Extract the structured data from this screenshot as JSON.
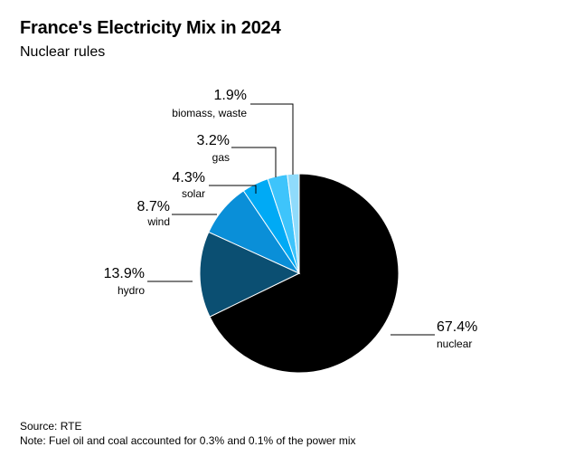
{
  "title": "France's Electricity Mix in 2024",
  "subtitle": "Nuclear rules",
  "source": "Source: RTE",
  "note": "Note: Fuel oil and coal accounted for 0.3% and 0.1% of the power mix",
  "chart_data": {
    "type": "pie",
    "title": "France's Electricity Mix in 2024",
    "subtitle": "Nuclear rules",
    "unit": "%",
    "slices": [
      {
        "label": "nuclear",
        "value": 67.4,
        "display": "67.4%",
        "color": "#000000"
      },
      {
        "label": "hydro",
        "value": 13.9,
        "display": "13.9%",
        "color": "#0b4f72"
      },
      {
        "label": "wind",
        "value": 8.7,
        "display": "8.7%",
        "color": "#0a8fd8"
      },
      {
        "label": "solar",
        "value": 4.3,
        "display": "4.3%",
        "color": "#00aaf5"
      },
      {
        "label": "gas",
        "value": 3.2,
        "display": "3.2%",
        "color": "#3ec4fb"
      },
      {
        "label": "biomass, waste",
        "value": 1.9,
        "display": "1.9%",
        "color": "#8fdbfb"
      }
    ]
  }
}
